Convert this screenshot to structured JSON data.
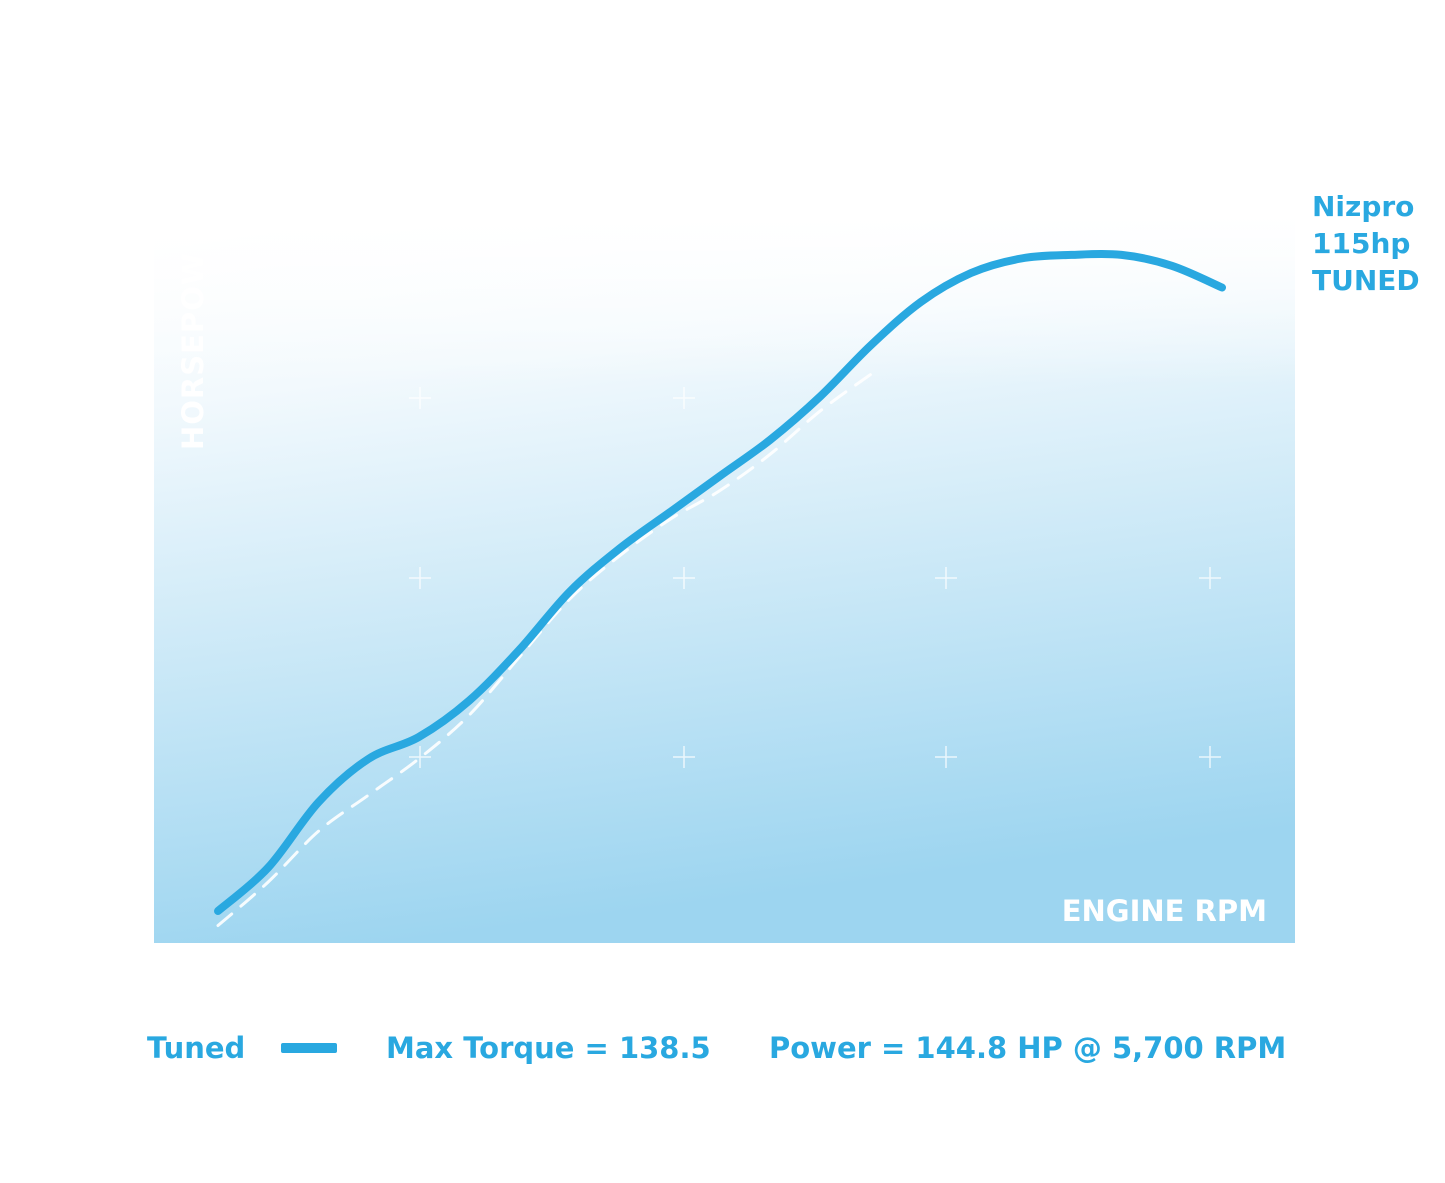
{
  "chart_data": {
    "type": "line",
    "title": "",
    "xlabel": "ENGINE RPM",
    "ylabel": "HORSEPOW",
    "grid": true,
    "series": [
      {
        "name": "Tuned",
        "style": "solid",
        "color": "#29a8e0",
        "x": [
          0,
          1,
          2,
          3,
          4,
          5,
          6,
          7,
          8,
          9,
          10,
          11,
          12,
          13,
          14,
          15,
          16,
          17,
          18,
          19,
          20
        ],
        "y": [
          0.04,
          0.1,
          0.19,
          0.25,
          0.28,
          0.33,
          0.4,
          0.48,
          0.54,
          0.59,
          0.64,
          0.69,
          0.75,
          0.82,
          0.88,
          0.92,
          0.94,
          0.945,
          0.945,
          0.93,
          0.9
        ]
      },
      {
        "name": "",
        "style": "dashed",
        "color": "#ffffff",
        "x": [
          0,
          1,
          2,
          3,
          4,
          5,
          6,
          7,
          8,
          9,
          10,
          11,
          12,
          13
        ],
        "y": [
          0.02,
          0.08,
          0.15,
          0.2,
          0.25,
          0.31,
          0.39,
          0.47,
          0.53,
          0.58,
          0.62,
          0.67,
          0.73,
          0.78
        ]
      }
    ],
    "legend": {
      "placement": "bottom",
      "label": "Tuned",
      "stats": [
        "Max Torque = 138.5",
        "Power = 144.8 HP @ 5,700 RPM"
      ]
    }
  },
  "annotation": {
    "lines": [
      "Nizpro",
      "115hp",
      "TUNED"
    ]
  },
  "colors": {
    "accent": "#29a8e0",
    "fill_light": "#ffffff",
    "fill_dark": "#9dd5f0"
  }
}
